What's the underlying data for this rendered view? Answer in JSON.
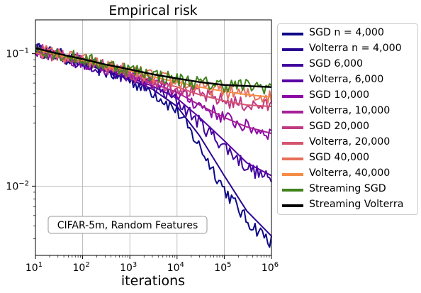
{
  "chart_data": {
    "type": "line",
    "title": "Empirical risk",
    "xlabel": "iterations",
    "ylabel": "",
    "xscale": "log",
    "yscale": "log",
    "xlim": [
      10,
      1000000
    ],
    "ylim": [
      0.003,
      0.18
    ],
    "x_ticks": [
      {
        "value": 10,
        "base": "10",
        "exp": "1"
      },
      {
        "value": 100,
        "base": "10",
        "exp": "2"
      },
      {
        "value": 1000,
        "base": "10",
        "exp": "3"
      },
      {
        "value": 10000,
        "base": "10",
        "exp": "4"
      },
      {
        "value": 100000,
        "base": "10",
        "exp": "5"
      },
      {
        "value": 1000000,
        "base": "10",
        "exp": "6"
      }
    ],
    "y_ticks": [
      {
        "value": 0.1,
        "base": "10",
        "exp": "−1"
      },
      {
        "value": 0.01,
        "base": "10",
        "exp": "−2"
      }
    ],
    "grid": true,
    "legend_position": "outside-right",
    "annotation": "CIFAR-5m, Random Features",
    "series": [
      {
        "name": "SGD n = 4,000",
        "color": "#0d0887",
        "noisy": true,
        "points": [
          [
            10,
            0.108
          ],
          [
            30,
            0.098
          ],
          [
            100,
            0.085
          ],
          [
            300,
            0.074
          ],
          [
            1000,
            0.063
          ],
          [
            3000,
            0.052
          ],
          [
            10000,
            0.037
          ],
          [
            30000,
            0.02
          ],
          [
            100000,
            0.0095
          ],
          [
            300000,
            0.0055
          ],
          [
            1000000,
            0.0038
          ]
        ]
      },
      {
        "name": "Volterra n = 4,000",
        "color": "#2a0593",
        "noisy": false,
        "points": [
          [
            10,
            0.108
          ],
          [
            30,
            0.097
          ],
          [
            100,
            0.085
          ],
          [
            300,
            0.074
          ],
          [
            1000,
            0.064
          ],
          [
            3000,
            0.054
          ],
          [
            10000,
            0.04
          ],
          [
            30000,
            0.024
          ],
          [
            100000,
            0.012
          ],
          [
            300000,
            0.0065
          ],
          [
            1000000,
            0.0042
          ]
        ]
      },
      {
        "name": "SGD 6,000",
        "color": "#41049d",
        "noisy": true,
        "points": [
          [
            10,
            0.108
          ],
          [
            30,
            0.097
          ],
          [
            100,
            0.086
          ],
          [
            300,
            0.076
          ],
          [
            1000,
            0.066
          ],
          [
            3000,
            0.056
          ],
          [
            10000,
            0.044
          ],
          [
            30000,
            0.03
          ],
          [
            100000,
            0.02
          ],
          [
            300000,
            0.014
          ],
          [
            1000000,
            0.011
          ]
        ]
      },
      {
        "name": "Volterra, 6,000",
        "color": "#5901a5",
        "noisy": false,
        "points": [
          [
            10,
            0.108
          ],
          [
            30,
            0.097
          ],
          [
            100,
            0.086
          ],
          [
            300,
            0.076
          ],
          [
            1000,
            0.066
          ],
          [
            3000,
            0.057
          ],
          [
            10000,
            0.046
          ],
          [
            30000,
            0.033
          ],
          [
            100000,
            0.022
          ],
          [
            300000,
            0.015
          ],
          [
            1000000,
            0.012
          ]
        ]
      },
      {
        "name": "SGD 10,000",
        "color": "#8b0aa5",
        "noisy": true,
        "points": [
          [
            10,
            0.108
          ],
          [
            30,
            0.097
          ],
          [
            100,
            0.087
          ],
          [
            300,
            0.078
          ],
          [
            1000,
            0.069
          ],
          [
            3000,
            0.06
          ],
          [
            10000,
            0.051
          ],
          [
            30000,
            0.041
          ],
          [
            100000,
            0.033
          ],
          [
            300000,
            0.028
          ],
          [
            1000000,
            0.025
          ]
        ]
      },
      {
        "name": "Volterra, 10,000",
        "color": "#a72197",
        "noisy": false,
        "points": [
          [
            10,
            0.108
          ],
          [
            30,
            0.097
          ],
          [
            100,
            0.087
          ],
          [
            300,
            0.078
          ],
          [
            1000,
            0.069
          ],
          [
            3000,
            0.06
          ],
          [
            10000,
            0.051
          ],
          [
            30000,
            0.041
          ],
          [
            100000,
            0.033
          ],
          [
            300000,
            0.028
          ],
          [
            1000000,
            0.025
          ]
        ]
      },
      {
        "name": "SGD 20,000",
        "color": "#c03a83",
        "noisy": true,
        "points": [
          [
            10,
            0.108
          ],
          [
            30,
            0.097
          ],
          [
            100,
            0.088
          ],
          [
            300,
            0.079
          ],
          [
            1000,
            0.071
          ],
          [
            3000,
            0.063
          ],
          [
            10000,
            0.056
          ],
          [
            30000,
            0.049
          ],
          [
            100000,
            0.044
          ],
          [
            300000,
            0.041
          ],
          [
            1000000,
            0.04
          ]
        ]
      },
      {
        "name": "Volterra, 20,000",
        "color": "#d5546e",
        "noisy": false,
        "points": [
          [
            10,
            0.108
          ],
          [
            30,
            0.097
          ],
          [
            100,
            0.088
          ],
          [
            300,
            0.079
          ],
          [
            1000,
            0.071
          ],
          [
            3000,
            0.063
          ],
          [
            10000,
            0.056
          ],
          [
            30000,
            0.049
          ],
          [
            100000,
            0.044
          ],
          [
            300000,
            0.041
          ],
          [
            1000000,
            0.04
          ]
        ]
      },
      {
        "name": "SGD 40,000",
        "color": "#e76f5a",
        "noisy": true,
        "points": [
          [
            10,
            0.108
          ],
          [
            30,
            0.098
          ],
          [
            100,
            0.089
          ],
          [
            300,
            0.081
          ],
          [
            1000,
            0.074
          ],
          [
            3000,
            0.067
          ],
          [
            10000,
            0.061
          ],
          [
            30000,
            0.056
          ],
          [
            100000,
            0.052
          ],
          [
            300000,
            0.049
          ],
          [
            1000000,
            0.047
          ]
        ]
      },
      {
        "name": "Volterra, 40,000",
        "color": "#f58c46",
        "noisy": false,
        "points": [
          [
            10,
            0.108
          ],
          [
            30,
            0.098
          ],
          [
            100,
            0.089
          ],
          [
            300,
            0.081
          ],
          [
            1000,
            0.074
          ],
          [
            3000,
            0.067
          ],
          [
            10000,
            0.061
          ],
          [
            30000,
            0.056
          ],
          [
            100000,
            0.052
          ],
          [
            300000,
            0.049
          ],
          [
            1000000,
            0.047
          ]
        ]
      },
      {
        "name": "Streaming SGD",
        "color": "#41821e",
        "noisy": true,
        "points": [
          [
            10,
            0.11
          ],
          [
            30,
            0.1
          ],
          [
            100,
            0.091
          ],
          [
            300,
            0.083
          ],
          [
            1000,
            0.076
          ],
          [
            3000,
            0.07
          ],
          [
            10000,
            0.064
          ],
          [
            30000,
            0.06
          ],
          [
            100000,
            0.058
          ],
          [
            300000,
            0.057
          ],
          [
            1000000,
            0.056
          ]
        ]
      },
      {
        "name": "Streaming Volterra",
        "color": "#000000",
        "noisy": false,
        "points": [
          [
            10,
            0.11
          ],
          [
            30,
            0.1
          ],
          [
            100,
            0.091
          ],
          [
            300,
            0.083
          ],
          [
            1000,
            0.076
          ],
          [
            3000,
            0.07
          ],
          [
            10000,
            0.065
          ],
          [
            30000,
            0.061
          ],
          [
            100000,
            0.058
          ],
          [
            300000,
            0.057
          ],
          [
            1000000,
            0.056
          ]
        ]
      }
    ]
  }
}
